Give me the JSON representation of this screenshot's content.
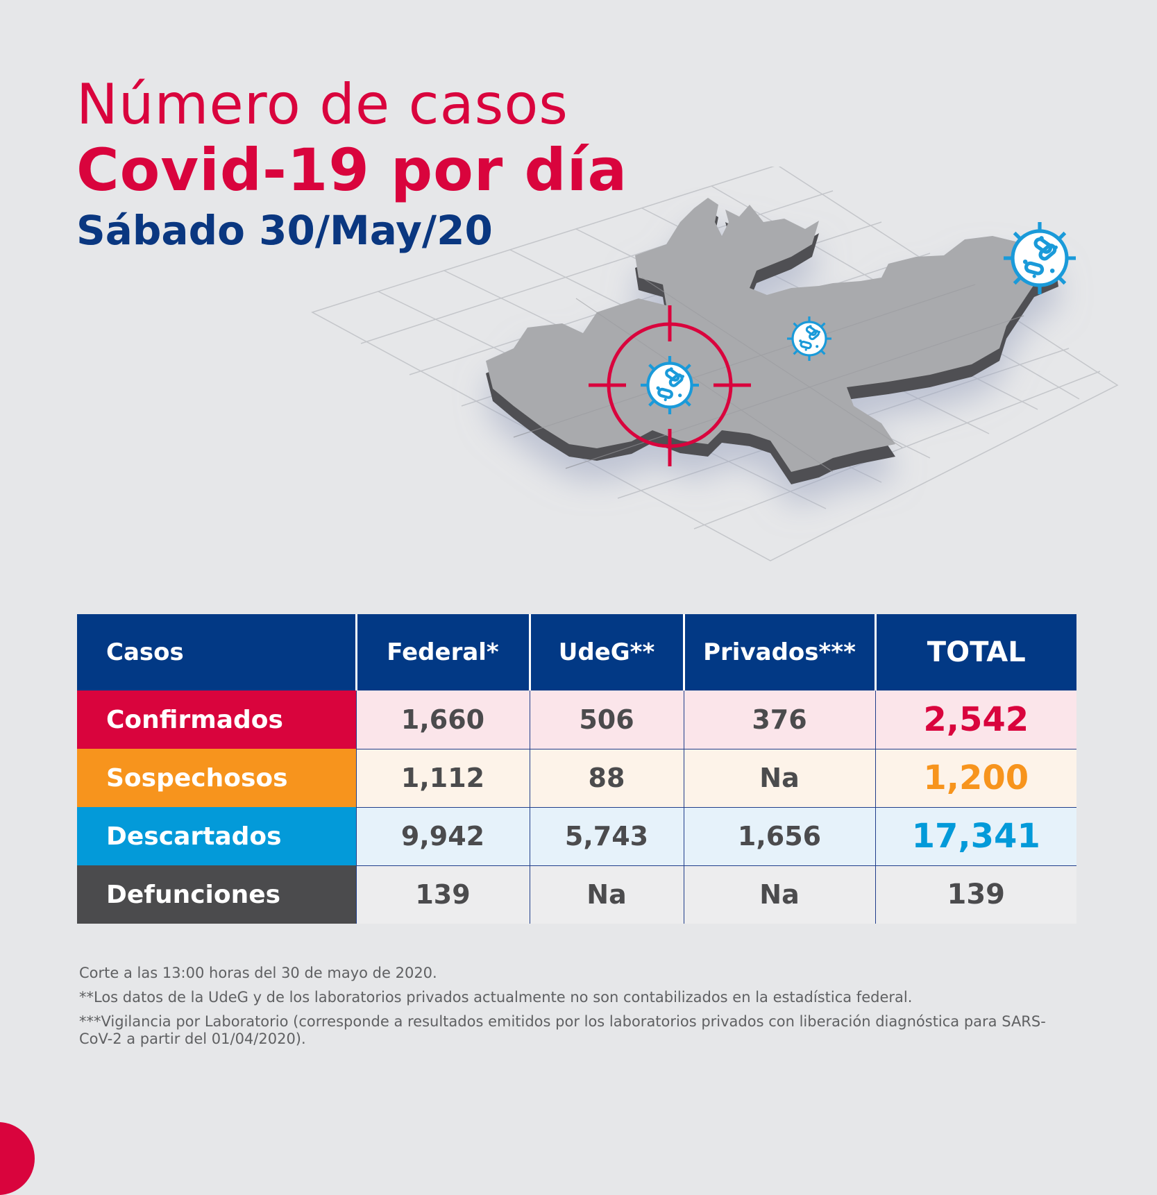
{
  "header": {
    "title_line1": "Número de casos",
    "title_line2": "Covid-19 por día",
    "date": "Sábado 30/May/20"
  },
  "illustration": {
    "map_icon": "jalisco-map-icon",
    "target_icon": "crosshair-target-icon",
    "virus_icon": "virus-icon"
  },
  "table": {
    "headers": [
      "Casos",
      "Federal*",
      "UdeG**",
      "Privados***",
      "TOTAL"
    ],
    "rows": [
      {
        "label": "Confirmados",
        "federal": "1,660",
        "udeg": "506",
        "privados": "376",
        "total": "2,542"
      },
      {
        "label": "Sospechosos",
        "federal": "1,112",
        "udeg": "88",
        "privados": "Na",
        "total": "1,200"
      },
      {
        "label": "Descartados",
        "federal": "9,942",
        "udeg": "5,743",
        "privados": "1,656",
        "total": "17,341"
      },
      {
        "label": "Defunciones",
        "federal": "139",
        "udeg": "Na",
        "privados": "Na",
        "total": "139"
      }
    ]
  },
  "notes": [
    "Corte a las 13:00 horas del 30 de mayo de 2020.",
    "**Los datos de la UdeG y de los laboratorios privados actualmente no son contabilizados en la estadística federal.",
    "***Vigilancia por Laboratorio (corresponde a resultados emitidos por los laboratorios privados con liberación diagnóstica para SARS-CoV-2 a partir del 01/04/2020)."
  ],
  "colors": {
    "red": "#d9043d",
    "navy": "#023985",
    "orange": "#f7941d",
    "blue": "#039ad9",
    "gray": "#4b4b4d"
  }
}
